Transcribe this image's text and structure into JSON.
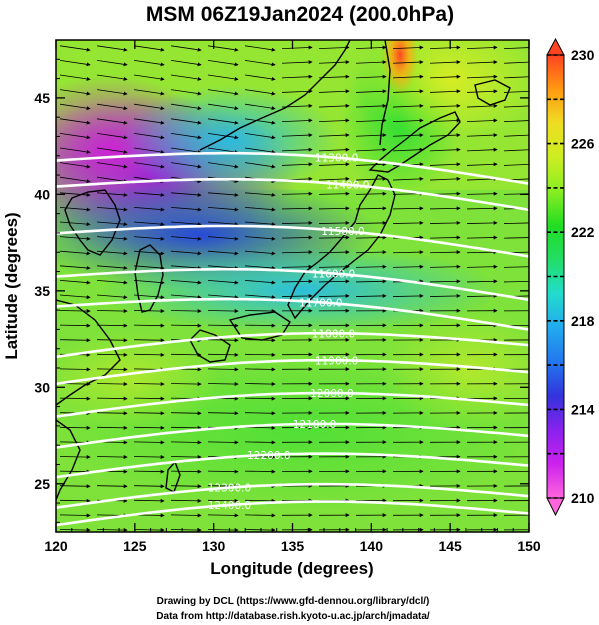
{
  "chart_data": {
    "type": "heatmap",
    "title": "MSM 06Z19Jan2024 (200.0hPa)",
    "xlabel": "Longitude (degrees)",
    "ylabel": "Latitude  (degrees)",
    "xlim": [
      120,
      150
    ],
    "ylim": [
      22.5,
      48
    ],
    "xticks": [
      "120",
      "125",
      "130",
      "135",
      "140",
      "145",
      "150"
    ],
    "xtick_values": [
      120,
      125,
      130,
      135,
      140,
      145,
      150
    ],
    "yticks": [
      "25",
      "30",
      "35",
      "40",
      "45"
    ],
    "ytick_values": [
      25,
      30,
      35,
      40,
      45
    ],
    "colorbar": {
      "min": 210,
      "max": 230,
      "ticks": [
        "210",
        "214",
        "218",
        "222",
        "226",
        "230"
      ],
      "tick_values": [
        210,
        214,
        218,
        222,
        226,
        230
      ],
      "colors": [
        "#ff66dd",
        "#cc22ee",
        "#8822ee",
        "#3333dd",
        "#2277ee",
        "#22aaee",
        "#22ddcc",
        "#22dd66",
        "#22dd22",
        "#88ee22",
        "#ccee22",
        "#eedd22",
        "#ff9911",
        "#ff4422"
      ]
    },
    "contours": {
      "field": "geopotential height",
      "levels": [
        11300,
        11400,
        11500,
        11600,
        11700,
        11800,
        11900,
        12000,
        12100,
        12200,
        12300,
        12400
      ],
      "labels": [
        "11300.0",
        "11400.0",
        "11500.0",
        "11600.0",
        "11700.0",
        "11800.0",
        "11900.0",
        "12000.0",
        "12100.0",
        "12200.0",
        "12300.0",
        "12400.0"
      ],
      "label_lon": [
        137.8,
        138.5,
        138.2,
        137.6,
        136.8,
        137.6,
        137.8,
        137.5,
        136.4,
        133.5,
        131,
        131
      ],
      "label_lat": [
        41.9,
        40.5,
        38.1,
        35.9,
        34.4,
        32.8,
        31.4,
        29.7,
        28.1,
        26.5,
        24.8,
        23.9
      ]
    },
    "wind_vectors": "westerly flow across domain",
    "credits": [
      "Drawing by DCL (https://www.gfd-dennou.org/library/dcl/)",
      "Data from http://database.rish.kyoto-u.ac.jp/arch/jmadata/"
    ]
  }
}
